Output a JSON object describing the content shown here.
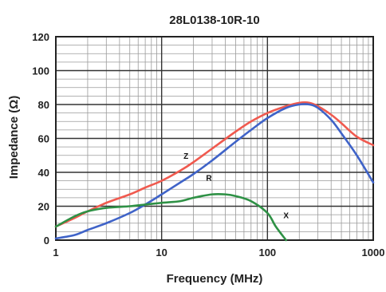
{
  "chart_data": {
    "type": "line",
    "title": "28L0138-10R-10",
    "xlabel": "Frequency (MHz)",
    "ylabel": "Impedance (Ω)",
    "x_scale": "log",
    "xlim": [
      1,
      1000
    ],
    "ylim": [
      0,
      120
    ],
    "x_ticks": [
      1,
      10,
      100,
      1000
    ],
    "x_tick_labels": [
      "1",
      "10",
      "100",
      "1000"
    ],
    "y_ticks": [
      0,
      20,
      40,
      60,
      80,
      100,
      120
    ],
    "y_tick_labels": [
      "0",
      "20",
      "40",
      "60",
      "80",
      "100",
      "120"
    ],
    "grid": true,
    "legend": "none",
    "series": [
      {
        "name": "Z",
        "color": "#f05a4f",
        "x": [
          1,
          1.5,
          2,
          3,
          5,
          7,
          10,
          15,
          20,
          30,
          50,
          70,
          100,
          150,
          200,
          250,
          300,
          400,
          500,
          700,
          1000
        ],
        "y": [
          8,
          13,
          17,
          22,
          27,
          31,
          35,
          41,
          46,
          54,
          64,
          70,
          75,
          79,
          81,
          81,
          79,
          74,
          69,
          61,
          56
        ]
      },
      {
        "name": "R",
        "color": "#3f63c8",
        "x": [
          1,
          1.5,
          2,
          3,
          5,
          7,
          10,
          15,
          20,
          30,
          50,
          70,
          100,
          150,
          200,
          250,
          300,
          400,
          500,
          700,
          1000
        ],
        "y": [
          1,
          3,
          6,
          10,
          16,
          21,
          27,
          34,
          39,
          47,
          58,
          65,
          72,
          78,
          80,
          80,
          78,
          71,
          63,
          50,
          34
        ]
      },
      {
        "name": "X",
        "color": "#2e9145",
        "x": [
          1,
          1.5,
          2,
          3,
          5,
          7,
          10,
          15,
          20,
          30,
          40,
          50,
          70,
          100,
          120,
          150
        ],
        "y": [
          8,
          14,
          17,
          19,
          20,
          21,
          22,
          23,
          25,
          27,
          27,
          26,
          23,
          16,
          8,
          0
        ]
      }
    ],
    "annotations": [
      {
        "text": "Z",
        "x": 17,
        "y": 48
      },
      {
        "text": "R",
        "x": 28,
        "y": 35
      },
      {
        "text": "X",
        "x": 150,
        "y": 13
      }
    ]
  }
}
